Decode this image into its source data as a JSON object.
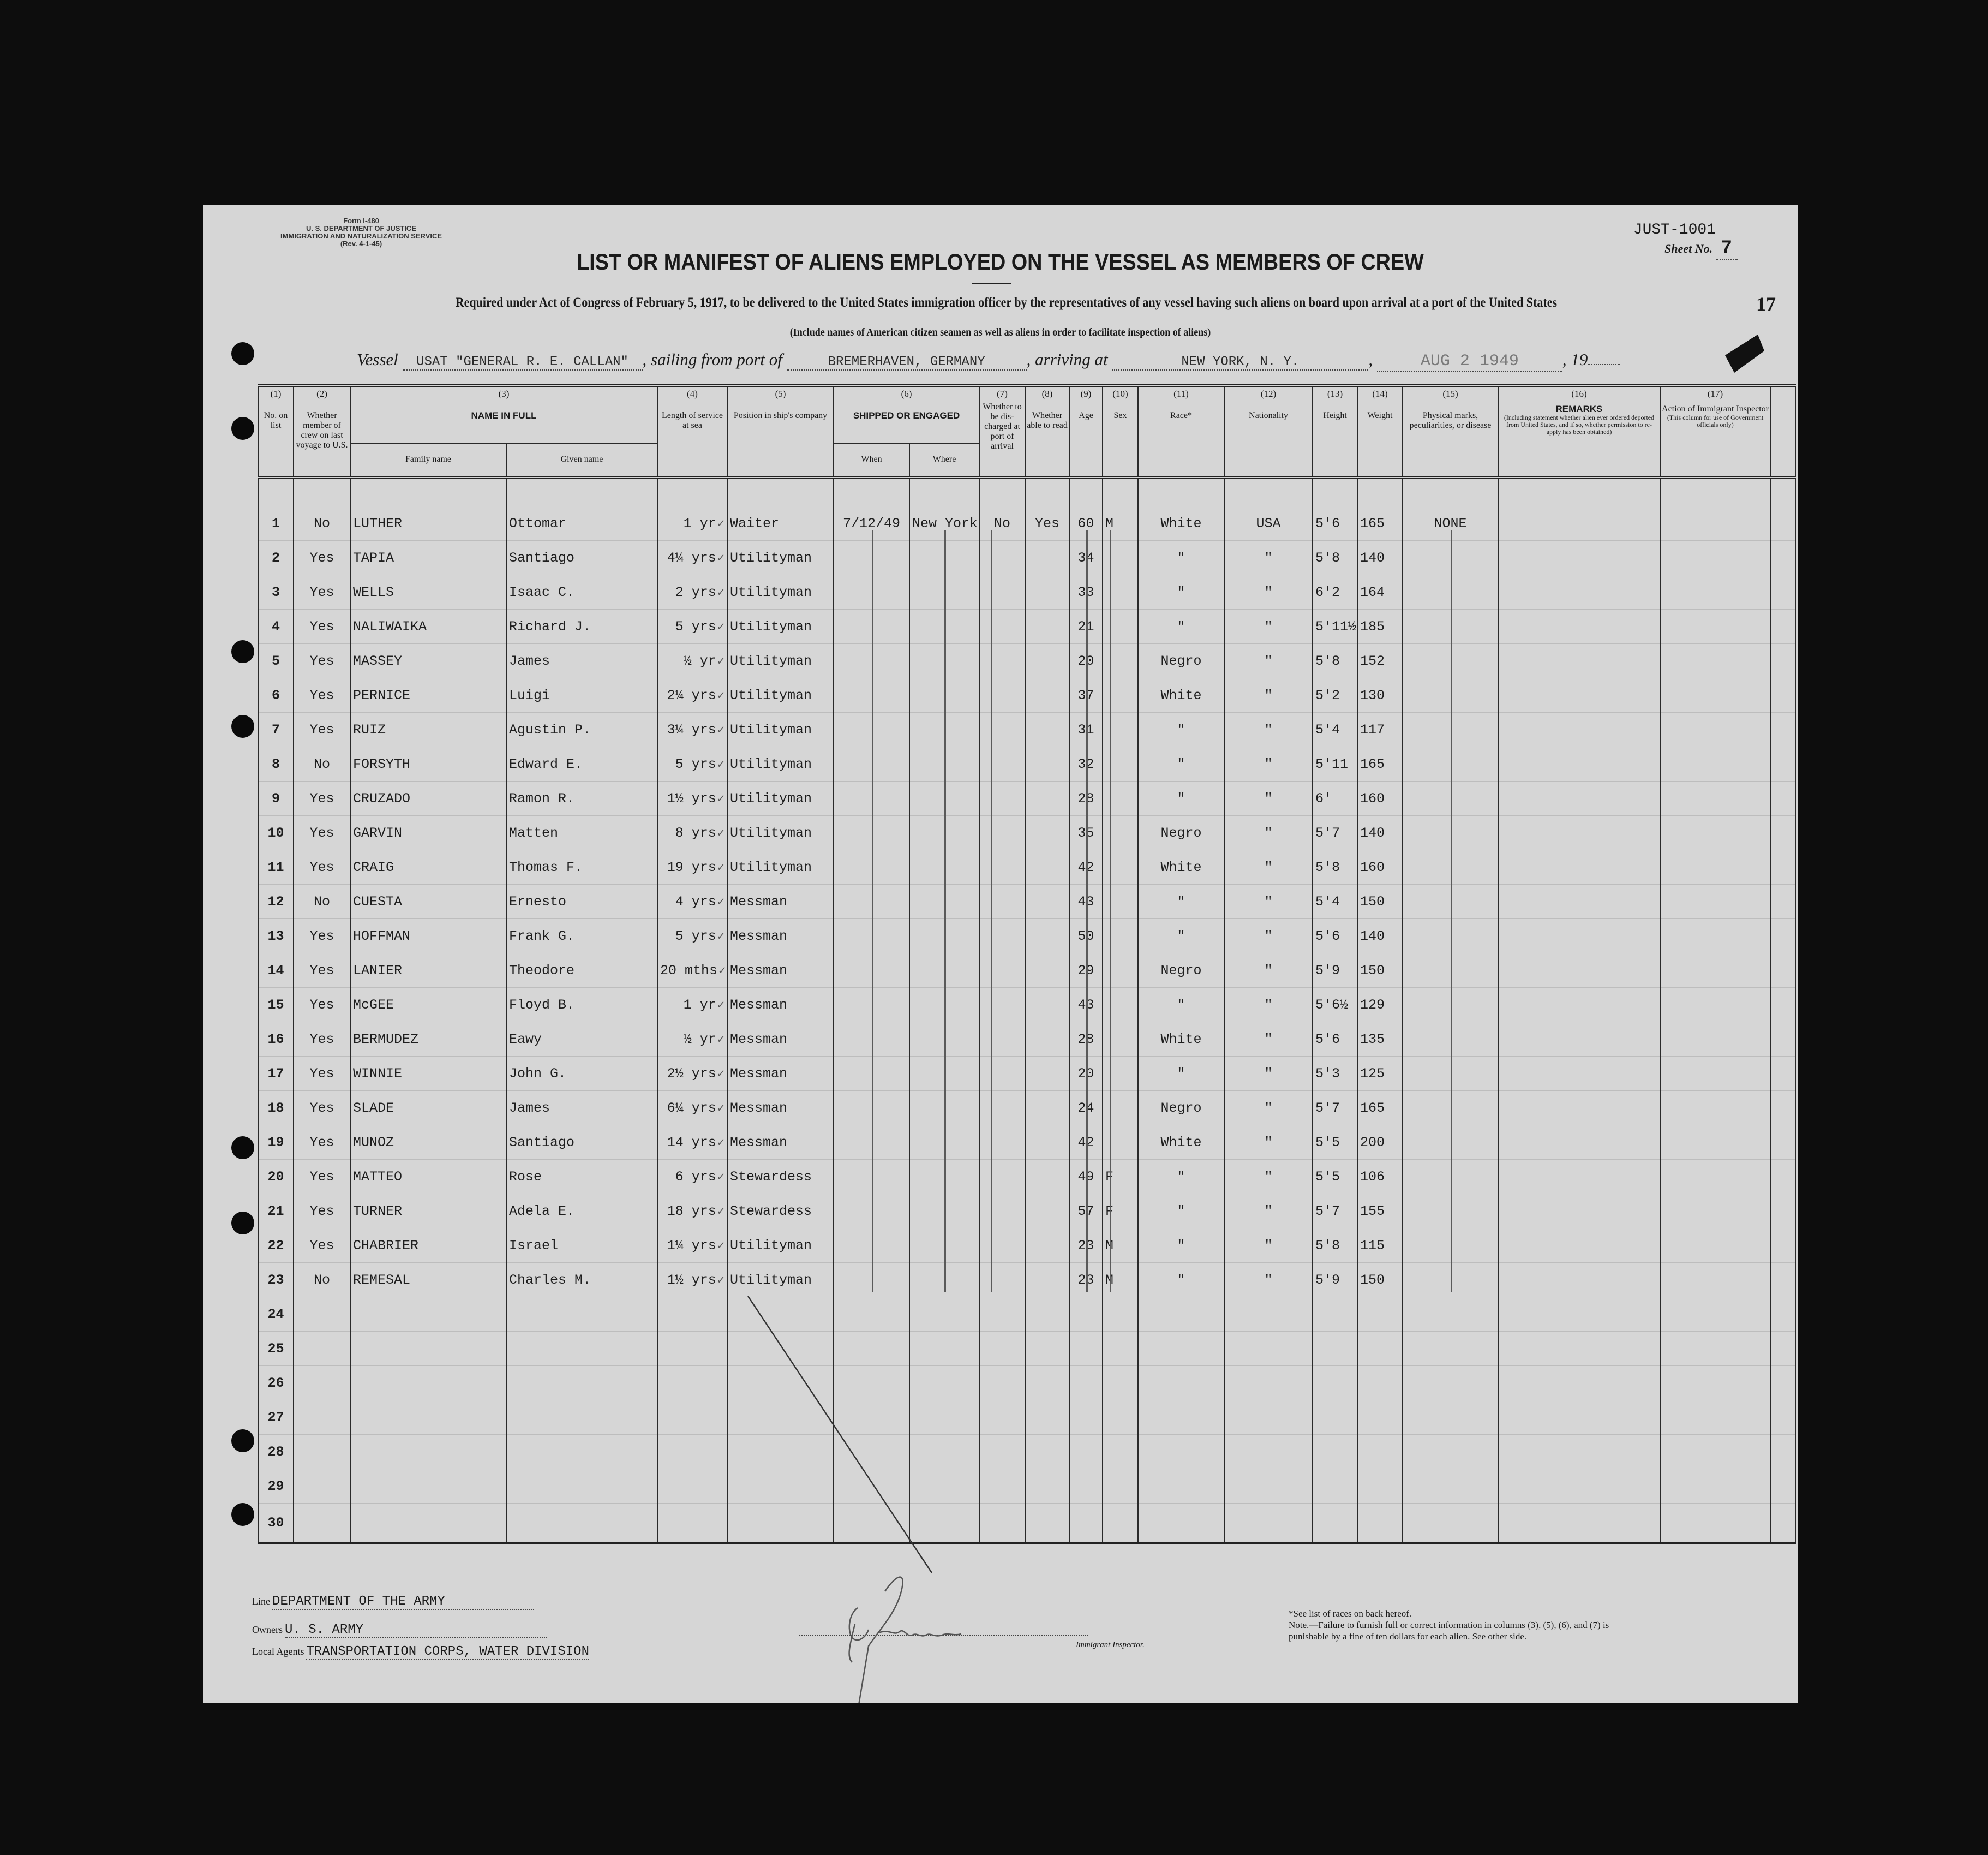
{
  "form": {
    "form_no": "Form I-480",
    "department": "U. S. DEPARTMENT OF JUSTICE",
    "service": "IMMIGRATION AND NATURALIZATION SERVICE",
    "revision": "(Rev. 4-1-45)",
    "code": "JUST-1001",
    "sheet_label": "Sheet No.",
    "sheet_no": "7",
    "page_number": "17"
  },
  "title": "LIST OR MANIFEST OF ALIENS EMPLOYED ON THE VESSEL AS MEMBERS OF CREW",
  "required_text": "Required under Act of Congress of February 5, 1917, to be delivered to the United States immigration officer by the representatives of any vessel having such aliens on board upon arrival at a port of the United States",
  "include_text": "(Include names of American citizen seamen as well as aliens in order to facilitate inspection of aliens)",
  "voyage": {
    "vessel_label": "Vessel",
    "vessel": "USAT \"GENERAL R. E. CALLAN\"",
    "sailing_label": ", sailing from port of",
    "port_from": "BREMERHAVEN, GERMANY",
    "arriving_label": ", arriving at",
    "port_to": "NEW YORK, N. Y.",
    "date": "AUG 2 1949",
    "year_label": ", 19"
  },
  "columns": {
    "c1": {
      "num": "(1)",
      "label": "No. on list"
    },
    "c2": {
      "num": "(2)",
      "label": "Whether member of crew on last voyage to U.S."
    },
    "c3": {
      "num": "(3)",
      "label": "NAME IN FULL",
      "family": "Family name",
      "given": "Given name"
    },
    "c4": {
      "num": "(4)",
      "label": "Length of service at sea"
    },
    "c5": {
      "num": "(5)",
      "label": "Position in ship's company"
    },
    "c6": {
      "num": "(6)",
      "label": "SHIPPED OR ENGAGED",
      "when": "When",
      "where": "Where"
    },
    "c7": {
      "num": "(7)",
      "label": "Whether to be dis-charged at port of arrival"
    },
    "c8": {
      "num": "(8)",
      "label": "Whether able to read"
    },
    "c9": {
      "num": "(9)",
      "label": "Age"
    },
    "c10": {
      "num": "(10)",
      "label": "Sex"
    },
    "c11": {
      "num": "(11)",
      "label": "Race*"
    },
    "c12": {
      "num": "(12)",
      "label": "Nationality"
    },
    "c13": {
      "num": "(13)",
      "label": "Height"
    },
    "c14": {
      "num": "(14)",
      "label": "Weight"
    },
    "c15": {
      "num": "(15)",
      "label": "Physical marks, peculiarities, or disease"
    },
    "c16": {
      "num": "(16)",
      "label": "REMARKS",
      "sub": "(Including statement whether alien ever ordered deported from United States, and if so, whether permission to re-apply has been obtained)"
    },
    "c17": {
      "num": "(17)",
      "label": "Action of Immigrant Inspector",
      "sub": "(This column for use of Government officials only)"
    }
  },
  "rows": [
    {
      "no": "1",
      "prev": "No",
      "family": "LUTHER",
      "given": "Ottomar",
      "service": "1 yr",
      "position": "Waiter",
      "when": "7/12/49",
      "where": "New York",
      "discharged": "No",
      "read": "Yes",
      "age": "60",
      "sex": "M",
      "race": "White",
      "nationality": "USA",
      "height": "5'6",
      "weight": "165",
      "marks": "NONE"
    },
    {
      "no": "2",
      "prev": "Yes",
      "family": "TAPIA",
      "given": "Santiago",
      "service": "4¼ yrs",
      "position": "Utilityman",
      "age": "34",
      "race": "\"",
      "nationality": "\"",
      "height": "5'8",
      "weight": "140"
    },
    {
      "no": "3",
      "prev": "Yes",
      "family": "WELLS",
      "given": "Isaac C.",
      "service": "2 yrs",
      "position": "Utilityman",
      "age": "33",
      "race": "\"",
      "nationality": "\"",
      "height": "6'2",
      "weight": "164"
    },
    {
      "no": "4",
      "prev": "Yes",
      "family": "NALIWAIKA",
      "given": "Richard J.",
      "service": "5 yrs",
      "position": "Utilityman",
      "age": "21",
      "race": "\"",
      "nationality": "\"",
      "height": "5'11½",
      "weight": "185"
    },
    {
      "no": "5",
      "prev": "Yes",
      "family": "MASSEY",
      "given": "James",
      "service": "½ yr",
      "position": "Utilityman",
      "age": "20",
      "race": "Negro",
      "nationality": "\"",
      "height": "5'8",
      "weight": "152"
    },
    {
      "no": "6",
      "prev": "Yes",
      "family": "PERNICE",
      "given": "Luigi",
      "service": "2¼ yrs",
      "position": "Utilityman",
      "age": "37",
      "race": "White",
      "nationality": "\"",
      "height": "5'2",
      "weight": "130"
    },
    {
      "no": "7",
      "prev": "Yes",
      "family": "RUIZ",
      "given": "Agustin P.",
      "service": "3¼ yrs",
      "position": "Utilityman",
      "age": "31",
      "race": "\"",
      "nationality": "\"",
      "height": "5'4",
      "weight": "117"
    },
    {
      "no": "8",
      "prev": "No",
      "family": "FORSYTH",
      "given": "Edward E.",
      "service": "5 yrs",
      "position": "Utilityman",
      "age": "32",
      "race": "\"",
      "nationality": "\"",
      "height": "5'11",
      "weight": "165"
    },
    {
      "no": "9",
      "prev": "Yes",
      "family": "CRUZADO",
      "given": "Ramon R.",
      "service": "1½ yrs",
      "position": "Utilityman",
      "age": "28",
      "race": "\"",
      "nationality": "\"",
      "height": "6'",
      "weight": "160"
    },
    {
      "no": "10",
      "prev": "Yes",
      "family": "GARVIN",
      "given": "Matten",
      "service": "8 yrs",
      "position": "Utilityman",
      "age": "35",
      "race": "Negro",
      "nationality": "\"",
      "height": "5'7",
      "weight": "140"
    },
    {
      "no": "11",
      "prev": "Yes",
      "family": "CRAIG",
      "given": "Thomas F.",
      "service": "19 yrs",
      "position": "Utilityman",
      "age": "42",
      "race": "White",
      "nationality": "\"",
      "height": "5'8",
      "weight": "160"
    },
    {
      "no": "12",
      "prev": "No",
      "family": "CUESTA",
      "given": "Ernesto",
      "service": "4 yrs",
      "position": "Messman",
      "age": "43",
      "race": "\"",
      "nationality": "\"",
      "height": "5'4",
      "weight": "150"
    },
    {
      "no": "13",
      "prev": "Yes",
      "family": "HOFFMAN",
      "given": "Frank G.",
      "service": "5 yrs",
      "position": "Messman",
      "age": "50",
      "race": "\"",
      "nationality": "\"",
      "height": "5'6",
      "weight": "140"
    },
    {
      "no": "14",
      "prev": "Yes",
      "family": "LANIER",
      "given": "Theodore",
      "service": "20 mths",
      "position": "Messman",
      "age": "29",
      "race": "Negro",
      "nationality": "\"",
      "height": "5'9",
      "weight": "150"
    },
    {
      "no": "15",
      "prev": "Yes",
      "family": "McGEE",
      "given": "Floyd B.",
      "service": "1 yr",
      "position": "Messman",
      "age": "43",
      "race": "\"",
      "nationality": "\"",
      "height": "5'6½",
      "weight": "129"
    },
    {
      "no": "16",
      "prev": "Yes",
      "family": "BERMUDEZ",
      "given": "Eawy",
      "service": "½ yr",
      "position": "Messman",
      "age": "28",
      "race": "White",
      "nationality": "\"",
      "height": "5'6",
      "weight": "135"
    },
    {
      "no": "17",
      "prev": "Yes",
      "family": "WINNIE",
      "given": "John G.",
      "service": "2½ yrs",
      "position": "Messman",
      "age": "20",
      "race": "\"",
      "nationality": "\"",
      "height": "5'3",
      "weight": "125"
    },
    {
      "no": "18",
      "prev": "Yes",
      "family": "SLADE",
      "given": "James",
      "service": "6¼ yrs",
      "position": "Messman",
      "age": "24",
      "race": "Negro",
      "nationality": "\"",
      "height": "5'7",
      "weight": "165"
    },
    {
      "no": "19",
      "prev": "Yes",
      "family": "MUNOZ",
      "given": "Santiago",
      "service": "14 yrs",
      "position": "Messman",
      "age": "42",
      "race": "White",
      "nationality": "\"",
      "height": "5'5",
      "weight": "200"
    },
    {
      "no": "20",
      "prev": "Yes",
      "family": "MATTEO",
      "given": "Rose",
      "service": "6 yrs",
      "position": "Stewardess",
      "age": "49",
      "sex": "F",
      "race": "\"",
      "nationality": "\"",
      "height": "5'5",
      "weight": "106"
    },
    {
      "no": "21",
      "prev": "Yes",
      "family": "TURNER",
      "given": "Adela E.",
      "service": "18 yrs",
      "position": "Stewardess",
      "age": "57",
      "sex": "F",
      "race": "\"",
      "nationality": "\"",
      "height": "5'7",
      "weight": "155"
    },
    {
      "no": "22",
      "prev": "Yes",
      "family": "CHABRIER",
      "given": "Israel",
      "service": "1¼ yrs",
      "position": "Utilityman",
      "age": "23",
      "sex": "M",
      "race": "\"",
      "nationality": "\"",
      "height": "5'8",
      "weight": "115"
    },
    {
      "no": "23",
      "prev": "No",
      "family": "REMESAL",
      "given": "Charles M.",
      "service": "1½ yrs",
      "position": "Utilityman",
      "age": "23",
      "sex": "M",
      "race": "\"",
      "nationality": "\"",
      "height": "5'9",
      "weight": "150"
    },
    {
      "no": "24"
    },
    {
      "no": "25"
    },
    {
      "no": "26"
    },
    {
      "no": "27"
    },
    {
      "no": "28"
    },
    {
      "no": "29"
    },
    {
      "no": "30"
    }
  ],
  "footer": {
    "line_label": "Line",
    "line": "DEPARTMENT OF THE ARMY",
    "owners_label": "Owners",
    "owners": "U. S. ARMY",
    "agents_label": "Local Agents",
    "agents": "TRANSPORTATION CORPS, WATER DIVISION",
    "signature": "E. Nenson",
    "inspector_label": "Immigrant Inspector.",
    "races_note": "*See list of races on back hereof.",
    "note": "Note.—Failure to furnish full or correct information in columns (3), (5), (6), and (7) is punishable by a fine of ten dollars for each alien.  See other side."
  },
  "colors": {
    "background": "#0d0d0d",
    "paper": "#d6d6d6",
    "ink": "#1a1a1a"
  }
}
